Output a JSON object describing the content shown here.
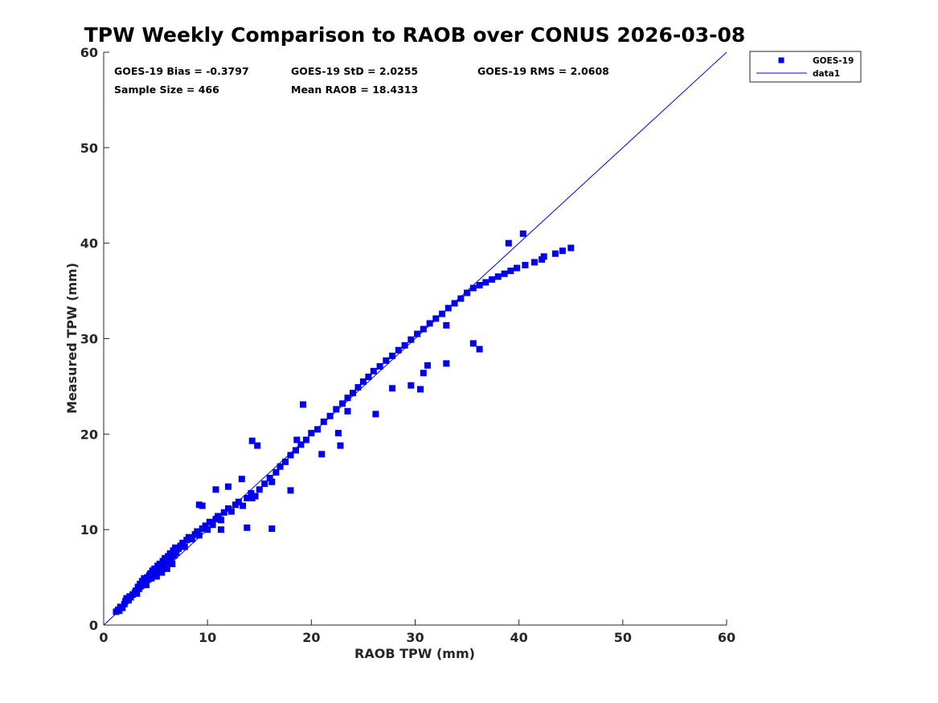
{
  "chart_data": {
    "type": "scatter",
    "title": "TPW Weekly Comparison to RAOB over CONUS 2026-03-08",
    "xlabel": "RAOB TPW (mm)",
    "ylabel": "Measured TPW (mm)",
    "xlim": [
      0,
      60
    ],
    "ylim": [
      0,
      60
    ],
    "xticks": [
      "0",
      "10",
      "20",
      "30",
      "40",
      "50",
      "60"
    ],
    "yticks": [
      "0",
      "10",
      "20",
      "30",
      "40",
      "50",
      "60"
    ],
    "grid": false,
    "legend_position": "outside top-right",
    "stats": {
      "bias": "GOES-19 Bias = -0.3797",
      "std": "GOES-19 StD = 2.0255",
      "rms": "GOES-19 RMS = 2.0608",
      "sample_size": "Sample Size = 466",
      "mean_raob": "Mean RAOB = 18.4313"
    },
    "colors": {
      "marker": "#0000ee",
      "line": "#0000ee"
    },
    "series": [
      {
        "name": "GOES-19",
        "kind": "scatter",
        "marker": "square",
        "x": [
          1.2,
          1.4,
          1.5,
          1.6,
          1.8,
          2.0,
          2.1,
          2.2,
          2.4,
          2.5,
          2.6,
          2.8,
          3.0,
          3.1,
          3.2,
          3.3,
          3.4,
          3.5,
          3.6,
          3.7,
          3.8,
          3.9,
          4.0,
          4.1,
          4.2,
          4.3,
          4.4,
          4.5,
          4.6,
          4.7,
          4.8,
          4.9,
          5.0,
          5.1,
          5.2,
          5.3,
          5.4,
          5.5,
          5.6,
          5.7,
          5.8,
          5.9,
          6.0,
          6.1,
          6.2,
          6.3,
          6.4,
          6.5,
          6.6,
          6.7,
          6.8,
          6.9,
          7.0,
          7.2,
          7.4,
          7.6,
          7.8,
          8.0,
          8.2,
          8.5,
          8.8,
          9.0,
          9.2,
          9.5,
          9.8,
          10.0,
          10.2,
          10.5,
          10.8,
          11.0,
          11.3,
          11.6,
          12.0,
          12.3,
          12.7,
          13.0,
          13.4,
          13.8,
          14.2,
          14.6,
          15.0,
          15.5,
          16.0,
          16.2,
          16.6,
          17.0,
          17.5,
          18.0,
          18.5,
          19.0,
          19.5,
          20.0,
          20.6,
          21.2,
          21.8,
          22.4,
          23.0,
          23.5,
          24.0,
          24.5,
          25.0,
          25.5,
          26.0,
          26.6,
          27.2,
          27.8,
          28.4,
          29.0,
          29.6,
          30.2,
          30.8,
          31.4,
          32.0,
          32.6,
          33.2,
          33.8,
          34.4,
          35.0,
          35.6,
          36.2,
          36.8,
          37.4,
          38.0,
          38.6,
          39.2,
          39.8,
          40.6,
          41.5,
          42.2,
          42.4,
          43.5,
          44.2,
          45.0,
          9.2,
          9.5,
          10.8,
          12.0,
          13.8,
          14.3,
          14.8,
          16.2,
          18.0,
          19.2,
          21.0,
          22.8,
          23.5,
          27.8,
          30.5,
          31.2,
          33.0,
          36.2,
          39.0,
          40.4,
          14.3,
          13.3,
          11.3,
          18.6,
          22.6,
          30.8,
          33.0,
          35.6,
          29.6,
          26.2
        ],
        "y": [
          1.4,
          1.6,
          1.5,
          1.9,
          1.8,
          2.2,
          2.5,
          2.8,
          2.6,
          3.0,
          2.9,
          3.2,
          3.4,
          3.6,
          3.3,
          4.0,
          3.8,
          4.3,
          4.1,
          4.6,
          4.4,
          4.9,
          4.5,
          4.2,
          5.0,
          4.8,
          5.2,
          5.4,
          4.9,
          5.7,
          5.3,
          5.9,
          5.6,
          5.1,
          6.2,
          5.8,
          6.4,
          6.0,
          5.5,
          6.7,
          6.3,
          7.0,
          6.6,
          5.9,
          7.2,
          6.8,
          7.5,
          7.0,
          6.4,
          7.8,
          7.3,
          8.1,
          7.6,
          8.0,
          8.3,
          8.6,
          8.2,
          8.9,
          9.2,
          9.0,
          9.5,
          9.8,
          9.4,
          10.1,
          10.4,
          10.0,
          10.8,
          10.5,
          11.1,
          11.4,
          11.0,
          11.8,
          12.2,
          11.9,
          12.6,
          12.9,
          12.5,
          13.3,
          13.8,
          13.5,
          14.2,
          14.8,
          15.4,
          15.0,
          16.0,
          16.6,
          17.1,
          17.8,
          18.3,
          18.9,
          19.4,
          20.1,
          20.5,
          21.3,
          21.9,
          22.6,
          23.2,
          23.8,
          24.3,
          24.9,
          25.5,
          26.0,
          26.6,
          27.1,
          27.7,
          28.2,
          28.8,
          29.3,
          29.9,
          30.5,
          31.0,
          31.6,
          32.1,
          32.6,
          33.2,
          33.7,
          34.2,
          34.8,
          35.3,
          35.6,
          35.9,
          36.2,
          36.5,
          36.8,
          37.1,
          37.4,
          37.7,
          38.0,
          38.3,
          38.6,
          38.9,
          39.2,
          39.5,
          12.6,
          12.5,
          14.2,
          14.5,
          10.2,
          19.3,
          18.8,
          10.1,
          14.1,
          23.1,
          17.9,
          18.8,
          22.4,
          24.8,
          24.7,
          27.2,
          31.4,
          28.9,
          40.0,
          41.0,
          13.3,
          15.3,
          10.0,
          19.4,
          20.1,
          26.4,
          27.4,
          29.5,
          25.1,
          22.1
        ]
      },
      {
        "name": "data1",
        "kind": "line",
        "x": [
          0,
          60
        ],
        "y": [
          0,
          60
        ]
      }
    ]
  }
}
